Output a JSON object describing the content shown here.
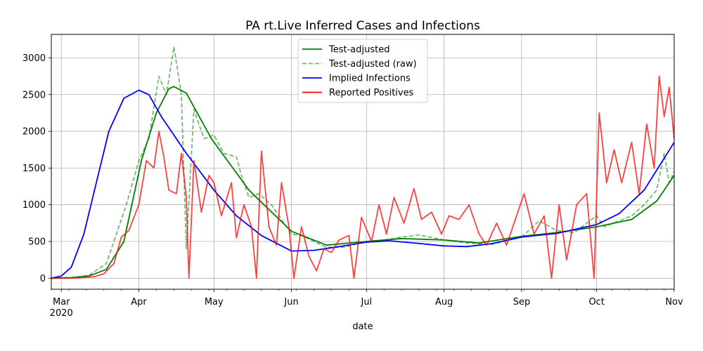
{
  "chart_data": {
    "type": "line",
    "title": "PA rt.Live Inferred Cases and Infections",
    "xlabel": "date",
    "ylabel": "",
    "x_tick_labels": [
      "Mar",
      "Apr",
      "May",
      "Jun",
      "Jul",
      "Aug",
      "Sep",
      "Oct",
      "Nov"
    ],
    "x_tick_sublabel": "2020",
    "x_tick_dates": [
      "2020-03-01",
      "2020-04-01",
      "2020-05-01",
      "2020-06-01",
      "2020-07-01",
      "2020-08-01",
      "2020-09-01",
      "2020-10-01",
      "2020-11-01"
    ],
    "xlim": [
      "2020-02-26",
      "2020-11-01"
    ],
    "ylim": [
      -150,
      3320
    ],
    "y_ticks": [
      0,
      500,
      1000,
      1500,
      2000,
      2500,
      3000
    ],
    "grid": true,
    "legend_position": "upper center",
    "series": [
      {
        "name": "Test-adjusted",
        "color": "#008000",
        "style": "solid",
        "points": [
          [
            "2020-02-26",
            0
          ],
          [
            "2020-03-05",
            5
          ],
          [
            "2020-03-12",
            30
          ],
          [
            "2020-03-19",
            120
          ],
          [
            "2020-03-26",
            500
          ],
          [
            "2020-04-02",
            1600
          ],
          [
            "2020-04-08",
            2250
          ],
          [
            "2020-04-13",
            2580
          ],
          [
            "2020-04-15",
            2610
          ],
          [
            "2020-04-20",
            2520
          ],
          [
            "2020-04-30",
            1900
          ],
          [
            "2020-05-15",
            1200
          ],
          [
            "2020-06-01",
            640
          ],
          [
            "2020-06-15",
            450
          ],
          [
            "2020-07-01",
            500
          ],
          [
            "2020-07-15",
            540
          ],
          [
            "2020-08-01",
            520
          ],
          [
            "2020-08-15",
            480
          ],
          [
            "2020-09-01",
            570
          ],
          [
            "2020-09-15",
            620
          ],
          [
            "2020-10-01",
            700
          ],
          [
            "2020-10-15",
            800
          ],
          [
            "2020-10-25",
            1050
          ],
          [
            "2020-11-01",
            1400
          ]
        ]
      },
      {
        "name": "Test-adjusted (raw)",
        "color": "#008000",
        "style": "dashed",
        "points": [
          [
            "2020-02-26",
            0
          ],
          [
            "2020-03-05",
            10
          ],
          [
            "2020-03-12",
            40
          ],
          [
            "2020-03-19",
            200
          ],
          [
            "2020-03-24",
            700
          ],
          [
            "2020-03-27",
            1000
          ],
          [
            "2020-04-01",
            1600
          ],
          [
            "2020-04-05",
            1900
          ],
          [
            "2020-04-09",
            2750
          ],
          [
            "2020-04-12",
            2500
          ],
          [
            "2020-04-15",
            3150
          ],
          [
            "2020-04-18",
            2500
          ],
          [
            "2020-04-20",
            400
          ],
          [
            "2020-04-23",
            2300
          ],
          [
            "2020-04-27",
            1900
          ],
          [
            "2020-05-01",
            1950
          ],
          [
            "2020-05-05",
            1700
          ],
          [
            "2020-05-10",
            1650
          ],
          [
            "2020-05-12",
            1400
          ],
          [
            "2020-05-15",
            1100
          ],
          [
            "2020-05-19",
            1150
          ],
          [
            "2020-05-24",
            1000
          ],
          [
            "2020-05-28",
            800
          ],
          [
            "2020-06-01",
            600
          ],
          [
            "2020-06-05",
            580
          ],
          [
            "2020-06-10",
            500
          ],
          [
            "2020-06-15",
            420
          ],
          [
            "2020-06-22",
            420
          ],
          [
            "2020-06-28",
            480
          ],
          [
            "2020-07-01",
            500
          ],
          [
            "2020-07-08",
            520
          ],
          [
            "2020-07-15",
            560
          ],
          [
            "2020-07-22",
            590
          ],
          [
            "2020-08-01",
            520
          ],
          [
            "2020-08-10",
            480
          ],
          [
            "2020-08-20",
            460
          ],
          [
            "2020-09-01",
            560
          ],
          [
            "2020-09-08",
            780
          ],
          [
            "2020-09-15",
            650
          ],
          [
            "2020-09-22",
            620
          ],
          [
            "2020-10-01",
            850
          ],
          [
            "2020-10-04",
            700
          ],
          [
            "2020-10-10",
            780
          ],
          [
            "2020-10-15",
            850
          ],
          [
            "2020-10-20",
            1000
          ],
          [
            "2020-10-25",
            1200
          ],
          [
            "2020-10-28",
            1700
          ],
          [
            "2020-10-30",
            1300
          ],
          [
            "2020-11-01",
            1450
          ]
        ]
      },
      {
        "name": "Implied Infections",
        "color": "#0000ff",
        "style": "solid",
        "points": [
          [
            "2020-02-26",
            0
          ],
          [
            "2020-03-01",
            30
          ],
          [
            "2020-03-05",
            150
          ],
          [
            "2020-03-10",
            600
          ],
          [
            "2020-03-15",
            1300
          ],
          [
            "2020-03-20",
            2000
          ],
          [
            "2020-03-26",
            2450
          ],
          [
            "2020-04-01",
            2560
          ],
          [
            "2020-04-05",
            2500
          ],
          [
            "2020-04-10",
            2200
          ],
          [
            "2020-04-20",
            1700
          ],
          [
            "2020-05-01",
            1200
          ],
          [
            "2020-05-10",
            850
          ],
          [
            "2020-05-20",
            580
          ],
          [
            "2020-06-01",
            370
          ],
          [
            "2020-06-10",
            380
          ],
          [
            "2020-06-20",
            430
          ],
          [
            "2020-07-01",
            490
          ],
          [
            "2020-07-10",
            510
          ],
          [
            "2020-07-20",
            480
          ],
          [
            "2020-08-01",
            440
          ],
          [
            "2020-08-10",
            430
          ],
          [
            "2020-08-20",
            470
          ],
          [
            "2020-09-01",
            560
          ],
          [
            "2020-09-15",
            610
          ],
          [
            "2020-10-01",
            730
          ],
          [
            "2020-10-10",
            880
          ],
          [
            "2020-10-20",
            1200
          ],
          [
            "2020-11-01",
            1850
          ]
        ]
      },
      {
        "name": "Reported Positives",
        "color": "#ff0000",
        "style": "solid",
        "points": [
          [
            "2020-02-26",
            0
          ],
          [
            "2020-03-08",
            5
          ],
          [
            "2020-03-14",
            20
          ],
          [
            "2020-03-18",
            60
          ],
          [
            "2020-03-22",
            200
          ],
          [
            "2020-03-25",
            560
          ],
          [
            "2020-03-28",
            650
          ],
          [
            "2020-04-01",
            1000
          ],
          [
            "2020-04-04",
            1600
          ],
          [
            "2020-04-07",
            1500
          ],
          [
            "2020-04-09",
            2000
          ],
          [
            "2020-04-11",
            1650
          ],
          [
            "2020-04-13",
            1200
          ],
          [
            "2020-04-16",
            1150
          ],
          [
            "2020-04-18",
            1700
          ],
          [
            "2020-04-20",
            1100
          ],
          [
            "2020-04-21",
            0
          ],
          [
            "2020-04-23",
            1600
          ],
          [
            "2020-04-26",
            900
          ],
          [
            "2020-04-29",
            1400
          ],
          [
            "2020-05-01",
            1300
          ],
          [
            "2020-05-04",
            850
          ],
          [
            "2020-05-08",
            1300
          ],
          [
            "2020-05-10",
            550
          ],
          [
            "2020-05-13",
            1000
          ],
          [
            "2020-05-16",
            700
          ],
          [
            "2020-05-18",
            0
          ],
          [
            "2020-05-20",
            1730
          ],
          [
            "2020-05-23",
            700
          ],
          [
            "2020-05-26",
            450
          ],
          [
            "2020-05-28",
            1300
          ],
          [
            "2020-05-31",
            700
          ],
          [
            "2020-06-02",
            0
          ],
          [
            "2020-06-05",
            700
          ],
          [
            "2020-06-08",
            300
          ],
          [
            "2020-06-11",
            100
          ],
          [
            "2020-06-14",
            400
          ],
          [
            "2020-06-17",
            350
          ],
          [
            "2020-06-20",
            520
          ],
          [
            "2020-06-24",
            580
          ],
          [
            "2020-06-26",
            0
          ],
          [
            "2020-06-29",
            830
          ],
          [
            "2020-07-03",
            500
          ],
          [
            "2020-07-06",
            1000
          ],
          [
            "2020-07-09",
            600
          ],
          [
            "2020-07-12",
            1100
          ],
          [
            "2020-07-16",
            750
          ],
          [
            "2020-07-20",
            1220
          ],
          [
            "2020-07-23",
            800
          ],
          [
            "2020-07-27",
            900
          ],
          [
            "2020-07-31",
            600
          ],
          [
            "2020-08-03",
            850
          ],
          [
            "2020-08-07",
            800
          ],
          [
            "2020-08-11",
            1000
          ],
          [
            "2020-08-15",
            600
          ],
          [
            "2020-08-18",
            450
          ],
          [
            "2020-08-22",
            750
          ],
          [
            "2020-08-26",
            450
          ],
          [
            "2020-08-30",
            850
          ],
          [
            "2020-09-02",
            1150
          ],
          [
            "2020-09-06",
            600
          ],
          [
            "2020-09-10",
            850
          ],
          [
            "2020-09-13",
            0
          ],
          [
            "2020-09-16",
            1000
          ],
          [
            "2020-09-19",
            250
          ],
          [
            "2020-09-23",
            1000
          ],
          [
            "2020-09-27",
            1150
          ],
          [
            "2020-09-30",
            0
          ],
          [
            "2020-10-02",
            2250
          ],
          [
            "2020-10-05",
            1300
          ],
          [
            "2020-10-08",
            1750
          ],
          [
            "2020-10-11",
            1300
          ],
          [
            "2020-10-15",
            1850
          ],
          [
            "2020-10-18",
            1150
          ],
          [
            "2020-10-21",
            2100
          ],
          [
            "2020-10-24",
            1500
          ],
          [
            "2020-10-26",
            2750
          ],
          [
            "2020-10-28",
            2200
          ],
          [
            "2020-10-30",
            2600
          ],
          [
            "2020-11-01",
            1900
          ]
        ]
      }
    ]
  }
}
